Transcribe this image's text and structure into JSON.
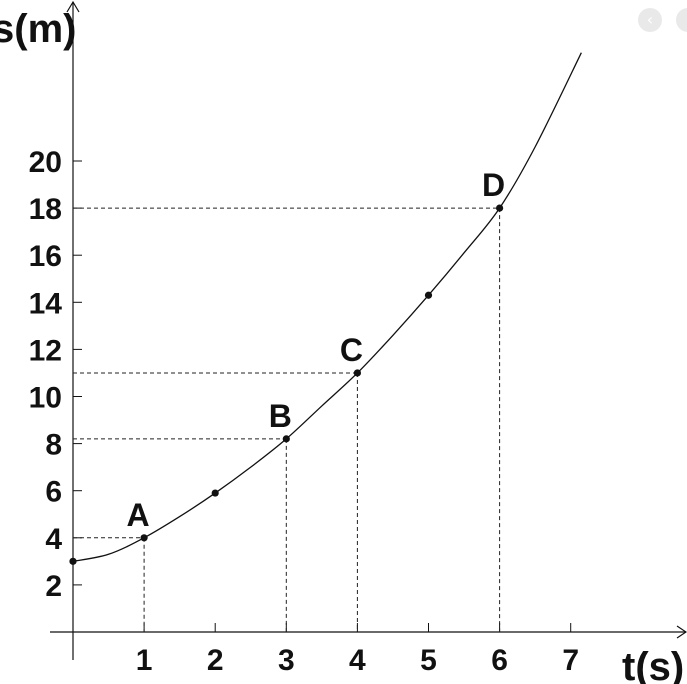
{
  "chart_data": {
    "type": "line",
    "title": "",
    "xlabel": "t(s)",
    "ylabel": "s(m)",
    "xlim": [
      0,
      8
    ],
    "ylim": [
      0,
      27
    ],
    "x_ticks": [
      "1",
      "2",
      "3",
      "4",
      "5",
      "6",
      "7"
    ],
    "y_ticks": [
      "2",
      "4",
      "6",
      "8",
      "10",
      "12",
      "14",
      "16",
      "18",
      "20"
    ],
    "grid": false,
    "legend": "none",
    "curve": {
      "x": [
        0,
        0.5,
        1,
        1.5,
        2,
        2.5,
        3,
        3.5,
        4,
        4.5,
        5,
        5.5,
        6,
        6.5,
        7.15
      ],
      "y": [
        3.0,
        3.3,
        4.0,
        4.9,
        5.9,
        7.0,
        8.2,
        9.6,
        11.0,
        12.6,
        14.3,
        16.1,
        18.0,
        20.6,
        24.6
      ]
    },
    "points": [
      {
        "label": "A",
        "x": 1,
        "y": 4.0,
        "guides": true
      },
      {
        "label": "",
        "x": 2,
        "y": 5.9,
        "guides": false
      },
      {
        "label": "B",
        "x": 3,
        "y": 8.2,
        "guides": true
      },
      {
        "label": "C",
        "x": 4,
        "y": 11.0,
        "guides": true
      },
      {
        "label": "",
        "x": 5,
        "y": 14.3,
        "guides": false
      },
      {
        "label": "D",
        "x": 6,
        "y": 18.0,
        "guides": true
      }
    ],
    "y_intercept": 3.0,
    "colors": {
      "line": "#111111",
      "guide": "#222222"
    }
  },
  "ui": {
    "nav_button_icon": "chevron-left-icon",
    "nav_button_glyph": "‹"
  }
}
